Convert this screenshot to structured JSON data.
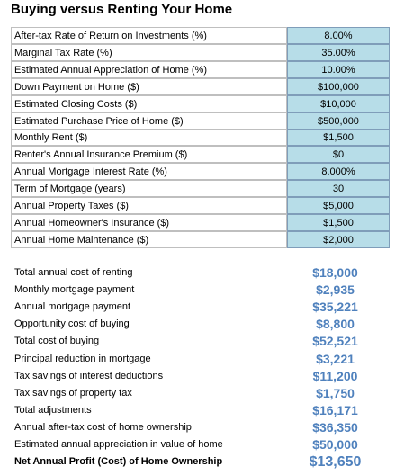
{
  "title": "Buying versus Renting Your Home",
  "inputs": [
    {
      "label": "After-tax Rate of Return on Investments (%)",
      "value": "8.00%"
    },
    {
      "label": "Marginal Tax Rate (%)",
      "value": "35.00%"
    },
    {
      "label": "Estimated Annual Appreciation of Home (%)",
      "value": "10.00%"
    },
    {
      "label": "Down Payment on Home ($)",
      "value": "$100,000"
    },
    {
      "label": "Estimated Closing Costs ($)",
      "value": "$10,000"
    },
    {
      "label": "Estimated Purchase Price of Home ($)",
      "value": "$500,000"
    },
    {
      "label": "Monthly Rent ($)",
      "value": "$1,500"
    },
    {
      "label": "Renter's Annual Insurance Premium ($)",
      "value": "$0"
    },
    {
      "label": "Annual Mortgage Interest Rate (%)",
      "value": "8.000%"
    },
    {
      "label": "Term of Mortgage (years)",
      "value": "30"
    },
    {
      "label": "Annual Property Taxes ($)",
      "value": "$5,000"
    },
    {
      "label": "Annual Homeowner's Insurance ($)",
      "value": "$1,500"
    },
    {
      "label": "Annual Home Maintenance ($)",
      "value": "$2,000"
    }
  ],
  "results": [
    {
      "label": "Total annual cost of renting",
      "value": "$18,000"
    },
    {
      "label": "Monthly mortgage payment",
      "value": "$2,935"
    },
    {
      "label": "Annual mortgage payment",
      "value": "$35,221"
    },
    {
      "label": "Opportunity cost of buying",
      "value": "$8,800"
    },
    {
      "label": "Total cost of buying",
      "value": "$52,521"
    },
    {
      "label": "Principal reduction in mortgage",
      "value": "$3,221"
    },
    {
      "label": "Tax savings of interest deductions",
      "value": "$11,200"
    },
    {
      "label": "Tax savings of property tax",
      "value": "$1,750"
    },
    {
      "label": "Total adjustments",
      "value": "$16,171"
    },
    {
      "label": "Annual after-tax cost of home ownership",
      "value": "$36,350"
    },
    {
      "label": "Estimated annual appreciation in value of home",
      "value": "$50,000"
    },
    {
      "label": "Net Annual Profit (Cost) of Home Ownership",
      "value": "$13,650"
    }
  ]
}
